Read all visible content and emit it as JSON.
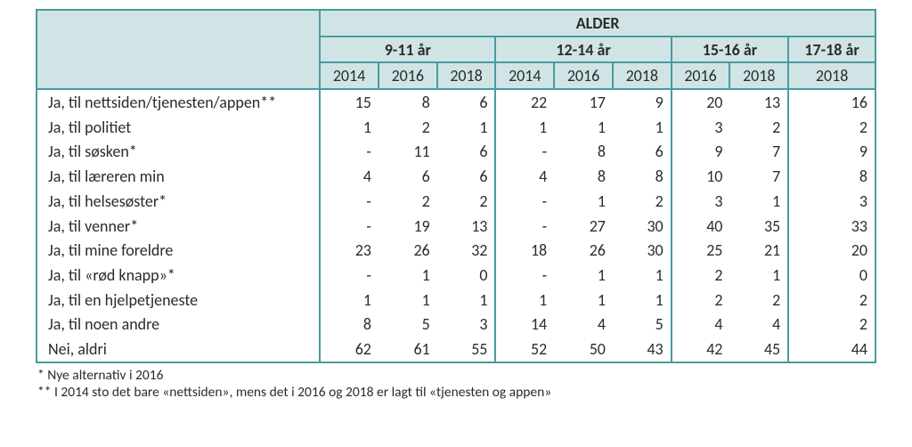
{
  "colors": {
    "border": "#4a9aa0",
    "header_bg": "#d0e4e6",
    "text": "#2b2b2b",
    "page_bg": "#ffffff"
  },
  "header": {
    "super": "ALDER",
    "groups": [
      "9-11 år",
      "12-14 år",
      "15-16 år",
      "17-18 år"
    ],
    "years": [
      "2014",
      "2016",
      "2018",
      "2014",
      "2016",
      "2018",
      "2016",
      "2018",
      "2018"
    ]
  },
  "rows": [
    {
      "label": "Ja, til nettsiden/tjenesten/appen**",
      "v": [
        "15",
        "8",
        "6",
        "22",
        "17",
        "9",
        "20",
        "13",
        "16"
      ]
    },
    {
      "label": "Ja, til politiet",
      "v": [
        "1",
        "2",
        "1",
        "1",
        "1",
        "1",
        "3",
        "2",
        "2"
      ]
    },
    {
      "label": "Ja, til søsken*",
      "v": [
        "-",
        "11",
        "6",
        "-",
        "8",
        "6",
        "9",
        "7",
        "9"
      ]
    },
    {
      "label": "Ja, til læreren min",
      "v": [
        "4",
        "6",
        "6",
        "4",
        "8",
        "8",
        "10",
        "7",
        "8"
      ]
    },
    {
      "label": "Ja, til helsesøster*",
      "v": [
        "-",
        "2",
        "2",
        "-",
        "1",
        "2",
        "3",
        "1",
        "3"
      ]
    },
    {
      "label": "Ja, til venner*",
      "v": [
        "-",
        "19",
        "13",
        "-",
        "27",
        "30",
        "40",
        "35",
        "33"
      ]
    },
    {
      "label": "Ja, til mine foreldre",
      "v": [
        "23",
        "26",
        "32",
        "18",
        "26",
        "30",
        "25",
        "21",
        "20"
      ]
    },
    {
      "label": "Ja, til «rød knapp»*",
      "v": [
        "-",
        "1",
        "0",
        "-",
        "1",
        "1",
        "2",
        "1",
        "0"
      ]
    },
    {
      "label": "Ja, til en hjelpetjeneste",
      "v": [
        "1",
        "1",
        "1",
        "1",
        "1",
        "1",
        "2",
        "2",
        "2"
      ]
    },
    {
      "label": "Ja, til noen andre",
      "v": [
        "8",
        "5",
        "3",
        "14",
        "4",
        "5",
        "4",
        "4",
        "2"
      ]
    },
    {
      "label": "Nei, aldri",
      "v": [
        "62",
        "61",
        "55",
        "52",
        "50",
        "43",
        "42",
        "45",
        "44"
      ]
    }
  ],
  "footnotes": [
    "*  Nye alternativ i 2016",
    "** I 2014 sto det bare «nettsiden», mens det i 2016 og 2018 er lagt til «tjenesten og appen»"
  ]
}
